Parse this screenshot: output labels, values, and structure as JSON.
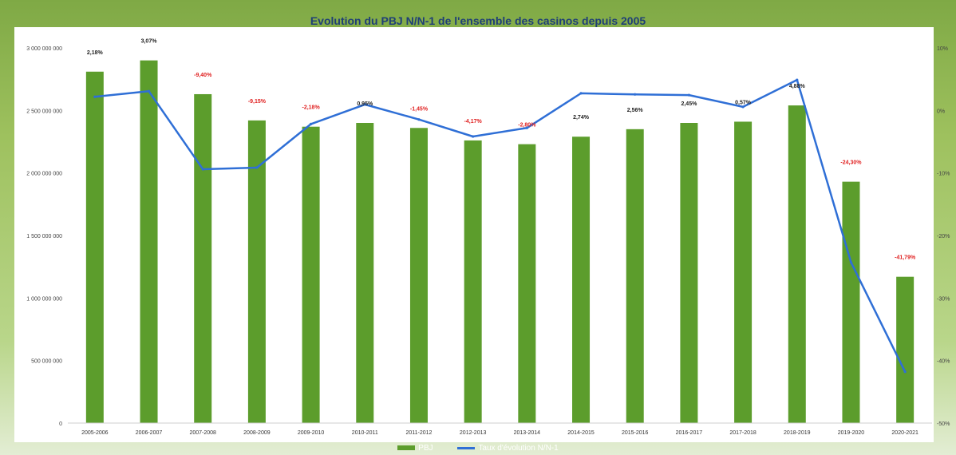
{
  "chart_data": {
    "type": "bar",
    "title": "Evolution du PBJ N/N-1 de l'ensemble des casinos depuis 2005",
    "categories": [
      "2005-2006",
      "2006-2007",
      "2007-2008",
      "2008-2009",
      "2009-2010",
      "2010-2011",
      "2011-2012",
      "2012-2013",
      "2013-2014",
      "2014-2015",
      "2015-2016",
      "2016-2017",
      "2017-2018",
      "2018-2019",
      "2019-2020",
      "2020-2021"
    ],
    "y_left": {
      "ylim": [
        0,
        3000000000
      ],
      "ticks": [
        0,
        500000000,
        1000000000,
        1500000000,
        2000000000,
        2500000000,
        3000000000
      ],
      "tick_labels": [
        "0",
        "500 000 000",
        "1 000 000 000",
        "1 500 000 000",
        "2 000 000 000",
        "2 500 000 000",
        "3 000 000 000"
      ]
    },
    "y_right": {
      "ylim": [
        -50,
        10
      ],
      "ticks": [
        -50,
        -40,
        -30,
        -20,
        -10,
        0,
        10
      ],
      "tick_labels": [
        "-50%",
        "-40%",
        "-30%",
        "-20%",
        "-10%",
        "0%",
        "10%"
      ]
    },
    "series": [
      {
        "name": "PBJ",
        "kind": "bar",
        "color": "#5c9d2c",
        "axis": "left",
        "values": [
          2810000000,
          2900000000,
          2630000000,
          2420000000,
          2370000000,
          2400000000,
          2360000000,
          2260000000,
          2230000000,
          2290000000,
          2350000000,
          2400000000,
          2410000000,
          2540000000,
          1930000000,
          1170000000
        ]
      },
      {
        "name": "Taux d'évolution N/N-1",
        "kind": "line",
        "color": "#2f6fd6",
        "axis": "right",
        "values": [
          2.18,
          3.07,
          -9.4,
          -9.15,
          -2.18,
          0.95,
          -1.45,
          -4.17,
          -2.8,
          2.74,
          2.56,
          2.45,
          0.57,
          4.88,
          -24.3,
          -41.79
        ]
      }
    ],
    "data_labels": [
      {
        "text": "2,18%",
        "color": "#222222"
      },
      {
        "text": "3,07%",
        "color": "#222222"
      },
      {
        "text": "-9,40%",
        "color": "#e02020"
      },
      {
        "text": "-9,15%",
        "color": "#e02020"
      },
      {
        "text": "-2,18%",
        "color": "#e02020"
      },
      {
        "text": "0,95%",
        "color": "#222222"
      },
      {
        "text": "-1,45%",
        "color": "#e02020"
      },
      {
        "text": "-4,17%",
        "color": "#e02020"
      },
      {
        "text": "-2,80%",
        "color": "#e02020"
      },
      {
        "text": "2,74%",
        "color": "#222222"
      },
      {
        "text": "2,56%",
        "color": "#222222"
      },
      {
        "text": "2,45%",
        "color": "#222222"
      },
      {
        "text": "0,57%",
        "color": "#222222"
      },
      {
        "text": "4,88%",
        "color": "#222222"
      },
      {
        "text": "-24,30%",
        "color": "#e02020"
      },
      {
        "text": "-41,79%",
        "color": "#e02020"
      }
    ],
    "legend": {
      "placement": "bottom",
      "items": [
        "PBJ",
        "Taux d'évolution N/N-1"
      ]
    },
    "grid": false
  }
}
